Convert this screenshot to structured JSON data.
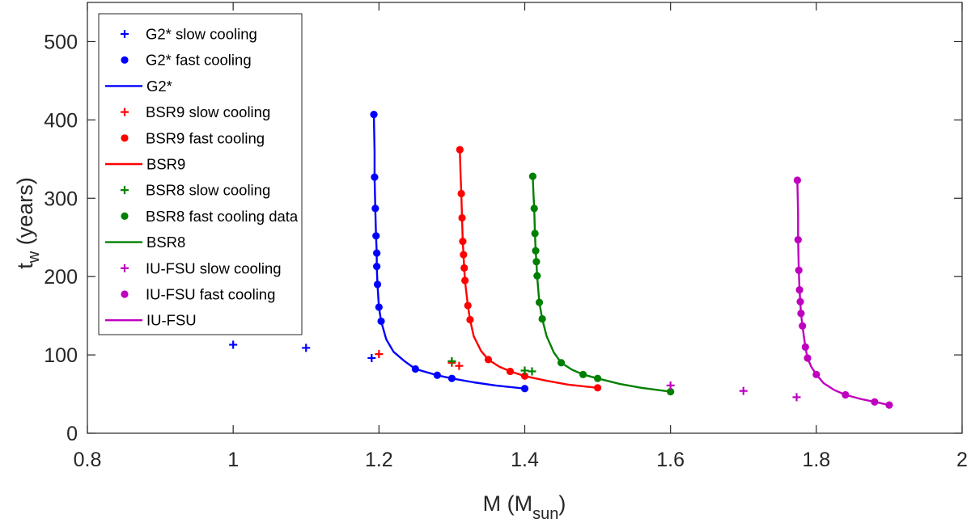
{
  "chart_data": {
    "type": "line",
    "title": "",
    "xlabel": "M (M",
    "xlabel_sub": "sun",
    "xlabel_close": ")",
    "ylabel": "t",
    "ylabel_sub": "w",
    "ylabel_units": " (years)",
    "xlim": [
      0.8,
      2.0
    ],
    "ylim": [
      0,
      550
    ],
    "xticks": [
      0.8,
      1.0,
      1.2,
      1.4,
      1.6,
      1.8,
      2.0
    ],
    "xtick_labels": [
      "0.8",
      "1",
      "1.2",
      "1.4",
      "1.6",
      "1.8",
      "2"
    ],
    "yticks": [
      0,
      100,
      200,
      300,
      400,
      500
    ],
    "ytick_labels": [
      "0",
      "100",
      "200",
      "300",
      "400",
      "500"
    ],
    "grid": false,
    "legend_position": "top-left",
    "legend": [
      {
        "label": "G2* slow cooling",
        "color": "#0000ff",
        "marker": "plus"
      },
      {
        "label": "G2* fast cooling",
        "color": "#0000ff",
        "marker": "dot"
      },
      {
        "label": "G2*",
        "color": "#0000ff",
        "marker": "line"
      },
      {
        "label": "BSR9 slow cooling",
        "color": "#ff0000",
        "marker": "plus"
      },
      {
        "label": "BSR9 fast cooling",
        "color": "#ff0000",
        "marker": "dot"
      },
      {
        "label": "BSR9",
        "color": "#ff0000",
        "marker": "line"
      },
      {
        "label": "BSR8 slow cooling",
        "color": "#008000",
        "marker": "plus"
      },
      {
        "label": "BSR8 fast cooling data",
        "color": "#008000",
        "marker": "dot"
      },
      {
        "label": "BSR8",
        "color": "#008000",
        "marker": "line"
      },
      {
        "label": "IU-FSU slow cooling",
        "color": "#bf00bf",
        "marker": "plus"
      },
      {
        "label": "IU-FSU fast cooling",
        "color": "#bf00bf",
        "marker": "dot"
      },
      {
        "label": "IU-FSU",
        "color": "#bf00bf",
        "marker": "line"
      }
    ],
    "series": [
      {
        "name": "G2*",
        "color": "#0000ff",
        "slow_cooling": [
          [
            1.0,
            113
          ],
          [
            1.1,
            109
          ],
          [
            1.19,
            96
          ]
        ],
        "fast_cooling": [
          [
            1.193,
            407
          ],
          [
            1.194,
            327
          ],
          [
            1.195,
            287
          ],
          [
            1.196,
            252
          ],
          [
            1.197,
            230
          ],
          [
            1.197,
            213
          ],
          [
            1.198,
            190
          ],
          [
            1.2,
            161
          ],
          [
            1.203,
            143
          ],
          [
            1.25,
            82
          ],
          [
            1.28,
            74
          ],
          [
            1.3,
            70
          ],
          [
            1.4,
            57
          ]
        ],
        "curve": [
          [
            1.193,
            407
          ],
          [
            1.194,
            360
          ],
          [
            1.194,
            327
          ],
          [
            1.195,
            287
          ],
          [
            1.196,
            252
          ],
          [
            1.197,
            230
          ],
          [
            1.197,
            213
          ],
          [
            1.198,
            190
          ],
          [
            1.2,
            161
          ],
          [
            1.203,
            143
          ],
          [
            1.21,
            120
          ],
          [
            1.22,
            104
          ],
          [
            1.235,
            92
          ],
          [
            1.25,
            82
          ],
          [
            1.28,
            74
          ],
          [
            1.3,
            70
          ],
          [
            1.33,
            65
          ],
          [
            1.36,
            61
          ],
          [
            1.4,
            57
          ]
        ]
      },
      {
        "name": "BSR9",
        "color": "#ff0000",
        "slow_cooling": [
          [
            1.2,
            101
          ],
          [
            1.3,
            90
          ],
          [
            1.31,
            86
          ]
        ],
        "fast_cooling": [
          [
            1.311,
            362
          ],
          [
            1.313,
            306
          ],
          [
            1.314,
            275
          ],
          [
            1.315,
            245
          ],
          [
            1.316,
            228
          ],
          [
            1.317,
            211
          ],
          [
            1.318,
            195
          ],
          [
            1.322,
            163
          ],
          [
            1.325,
            145
          ],
          [
            1.35,
            94
          ],
          [
            1.38,
            79
          ],
          [
            1.4,
            73
          ],
          [
            1.5,
            58
          ]
        ],
        "curve": [
          [
            1.311,
            362
          ],
          [
            1.312,
            330
          ],
          [
            1.313,
            306
          ],
          [
            1.314,
            275
          ],
          [
            1.315,
            245
          ],
          [
            1.316,
            228
          ],
          [
            1.317,
            211
          ],
          [
            1.318,
            195
          ],
          [
            1.322,
            163
          ],
          [
            1.325,
            145
          ],
          [
            1.33,
            124
          ],
          [
            1.34,
            105
          ],
          [
            1.35,
            94
          ],
          [
            1.365,
            85
          ],
          [
            1.38,
            79
          ],
          [
            1.4,
            73
          ],
          [
            1.43,
            67
          ],
          [
            1.46,
            62
          ],
          [
            1.5,
            58
          ]
        ]
      },
      {
        "name": "BSR8",
        "color": "#008000",
        "slow_cooling": [
          [
            1.3,
            92
          ],
          [
            1.4,
            80
          ],
          [
            1.41,
            79
          ]
        ],
        "fast_cooling": [
          [
            1.411,
            328
          ],
          [
            1.413,
            287
          ],
          [
            1.414,
            255
          ],
          [
            1.415,
            233
          ],
          [
            1.416,
            219
          ],
          [
            1.417,
            201
          ],
          [
            1.42,
            167
          ],
          [
            1.424,
            146
          ],
          [
            1.45,
            90
          ],
          [
            1.48,
            75
          ],
          [
            1.5,
            70
          ],
          [
            1.6,
            53
          ]
        ],
        "curve": [
          [
            1.411,
            328
          ],
          [
            1.412,
            305
          ],
          [
            1.413,
            287
          ],
          [
            1.414,
            255
          ],
          [
            1.415,
            233
          ],
          [
            1.416,
            219
          ],
          [
            1.417,
            201
          ],
          [
            1.42,
            167
          ],
          [
            1.424,
            146
          ],
          [
            1.43,
            124
          ],
          [
            1.44,
            103
          ],
          [
            1.45,
            90
          ],
          [
            1.465,
            81
          ],
          [
            1.48,
            75
          ],
          [
            1.5,
            70
          ],
          [
            1.53,
            63
          ],
          [
            1.56,
            58
          ],
          [
            1.6,
            53
          ]
        ]
      },
      {
        "name": "IU-FSU",
        "color": "#bf00bf",
        "slow_cooling": [
          [
            1.6,
            61
          ],
          [
            1.7,
            54
          ],
          [
            1.773,
            46
          ]
        ],
        "fast_cooling": [
          [
            1.774,
            323
          ],
          [
            1.775,
            247
          ],
          [
            1.776,
            208
          ],
          [
            1.777,
            183
          ],
          [
            1.778,
            168
          ],
          [
            1.779,
            153
          ],
          [
            1.781,
            137
          ],
          [
            1.785,
            110
          ],
          [
            1.788,
            96
          ],
          [
            1.8,
            75
          ],
          [
            1.84,
            49
          ],
          [
            1.88,
            40
          ],
          [
            1.9,
            36
          ]
        ],
        "curve": [
          [
            1.774,
            323
          ],
          [
            1.775,
            280
          ],
          [
            1.775,
            247
          ],
          [
            1.776,
            208
          ],
          [
            1.777,
            183
          ],
          [
            1.778,
            168
          ],
          [
            1.779,
            153
          ],
          [
            1.781,
            137
          ],
          [
            1.785,
            110
          ],
          [
            1.788,
            96
          ],
          [
            1.793,
            85
          ],
          [
            1.8,
            75
          ],
          [
            1.81,
            64
          ],
          [
            1.825,
            55
          ],
          [
            1.84,
            49
          ],
          [
            1.86,
            44
          ],
          [
            1.88,
            40
          ],
          [
            1.9,
            36
          ]
        ]
      }
    ]
  }
}
